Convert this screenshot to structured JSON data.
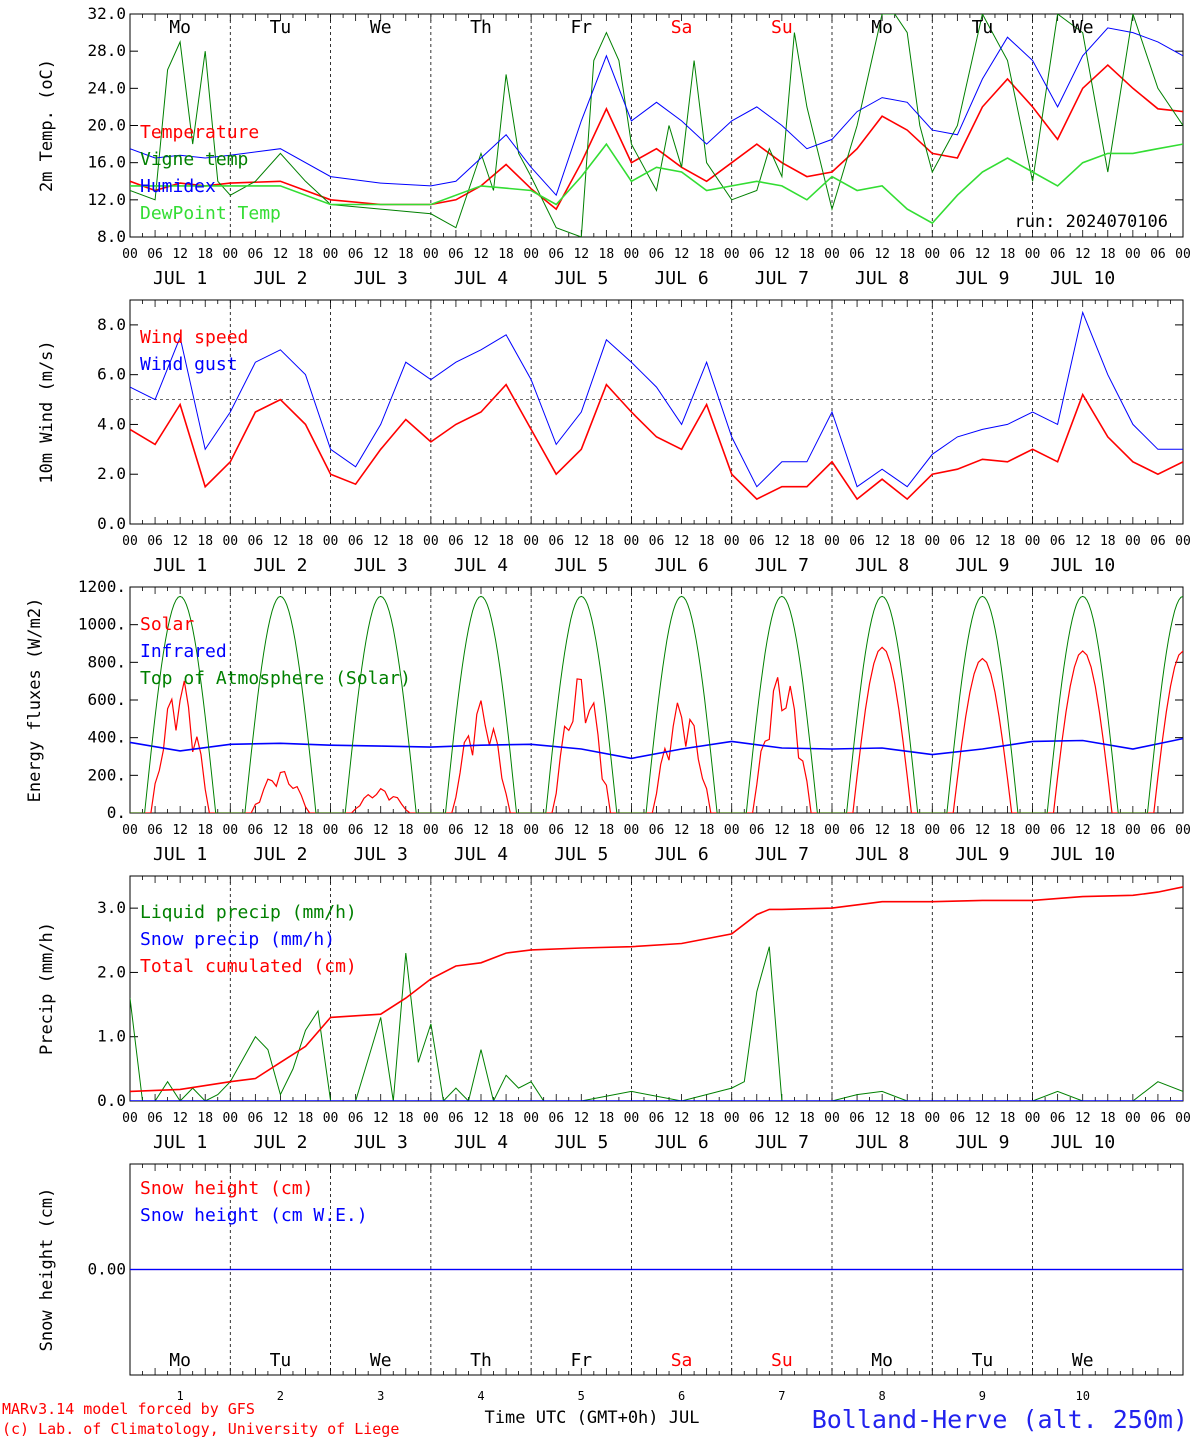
{
  "colors": {
    "red": "#ff0000",
    "blue": "#0000ff",
    "dark_green": "#008000",
    "light_green": "#33dd33",
    "purple": "#7f3fbf",
    "black": "#000000"
  },
  "footer": {
    "model_line": "MARv3.14 model forced by GFS",
    "credit_line": "(c) Lab. of Climatology, University of Liege",
    "time_axis_label": "Time UTC (GMT+0h) JUL",
    "station": "Bolland-Herve (alt. 250m)"
  },
  "days": {
    "weekday_labels": [
      "Mo",
      "Tu",
      "We",
      "Th",
      "Fr",
      "Sa",
      "Su",
      "Mo",
      "Tu",
      "We"
    ],
    "weekend_flags": [
      false,
      false,
      false,
      false,
      false,
      true,
      true,
      false,
      false,
      false
    ],
    "date_labels": [
      "JUL  1",
      "JUL  2",
      "JUL  3",
      "JUL  4",
      "JUL  5",
      "JUL  6",
      "JUL  7",
      "JUL  8",
      "JUL  9",
      "JUL 10"
    ],
    "day_numbers": [
      "1",
      "2",
      "3",
      "4",
      "5",
      "6",
      "7",
      "8",
      "9",
      "10"
    ],
    "hour_tick_labels": [
      "00",
      "06",
      "12",
      "18"
    ],
    "final_hour_label": "00"
  },
  "chart_data": [
    {
      "type": "line",
      "ylabel": "2m Temp. (oC)",
      "ylim": [
        8,
        32
      ],
      "yticks": [
        "8.0",
        "12.0",
        "16.0",
        "20.0",
        "24.0",
        "28.0",
        "32.0"
      ],
      "x_unit": "hours since JUL 1 00 UTC",
      "annotation": "run: 2024070106",
      "series": [
        {
          "name": "Temperature",
          "color": "red",
          "x": [
            0,
            6,
            12,
            18,
            24,
            36,
            48,
            60,
            72,
            78,
            84,
            90,
            96,
            102,
            108,
            114,
            120,
            126,
            132,
            138,
            144,
            150,
            156,
            162,
            168,
            174,
            180,
            186,
            192,
            198,
            204,
            210,
            216,
            222,
            228,
            234,
            240,
            246,
            252
          ],
          "y": [
            14,
            13,
            13.8,
            13.5,
            13.8,
            14,
            12,
            11.5,
            11.5,
            12,
            13.5,
            15.8,
            13.2,
            11,
            16,
            21.8,
            16,
            17.5,
            15.5,
            14,
            16,
            18,
            16,
            14.5,
            15,
            17.5,
            21,
            19.5,
            17,
            16.5,
            22,
            25,
            22,
            18.5,
            24,
            26.5,
            24,
            21.8,
            21.5
          ]
        },
        {
          "name": "Vigne temp",
          "color": "dark_green",
          "x": [
            0,
            6,
            9,
            12,
            15,
            18,
            21,
            24,
            30,
            36,
            42,
            48,
            60,
            72,
            78,
            84,
            87,
            90,
            93,
            96,
            102,
            108,
            111,
            114,
            117,
            120,
            126,
            129,
            132,
            135,
            138,
            144,
            150,
            153,
            156,
            159,
            162,
            168,
            174,
            180,
            183,
            186,
            189,
            192,
            198,
            204,
            210,
            216,
            222,
            228,
            234,
            240,
            246,
            252
          ],
          "y": [
            13,
            12,
            26,
            29,
            18,
            28,
            14,
            12.5,
            14,
            17,
            14,
            11.5,
            11,
            10.5,
            9,
            17,
            13,
            25.5,
            17,
            14.5,
            9,
            8,
            27,
            30,
            27,
            18,
            13,
            20,
            15.5,
            27,
            16,
            12,
            13,
            17.5,
            14.5,
            30,
            22,
            11,
            20,
            32,
            32,
            30,
            20,
            15,
            20,
            32,
            27,
            14,
            32,
            30,
            15,
            32,
            24,
            20
          ]
        },
        {
          "name": "Humidex",
          "color": "blue",
          "x": [
            0,
            6,
            12,
            18,
            24,
            36,
            48,
            60,
            72,
            78,
            84,
            90,
            96,
            102,
            108,
            114,
            120,
            126,
            132,
            138,
            144,
            150,
            156,
            162,
            168,
            174,
            180,
            186,
            192,
            198,
            204,
            210,
            216,
            222,
            228,
            234,
            240,
            246,
            252
          ],
          "y": [
            17.5,
            16.5,
            16.8,
            16.5,
            16.8,
            17.5,
            14.5,
            13.8,
            13.5,
            14,
            16.5,
            19,
            15.5,
            12.5,
            20.5,
            27.5,
            20.5,
            22.5,
            20.5,
            18,
            20.5,
            22,
            20,
            17.5,
            18.5,
            21.5,
            23,
            22.5,
            19.5,
            19,
            25,
            29.5,
            27,
            22,
            27.5,
            30.5,
            30,
            29,
            27.5
          ]
        },
        {
          "name": "DewPoint Temp",
          "color": "light_green",
          "x": [
            0,
            12,
            24,
            36,
            48,
            60,
            72,
            84,
            96,
            102,
            108,
            114,
            120,
            126,
            132,
            138,
            144,
            150,
            156,
            162,
            168,
            174,
            180,
            186,
            192,
            198,
            204,
            210,
            216,
            222,
            228,
            234,
            240,
            246,
            252
          ],
          "y": [
            13.5,
            13.5,
            13.5,
            13.5,
            11.5,
            11.5,
            11.5,
            13.5,
            13,
            11.5,
            14.5,
            18,
            14,
            15.5,
            15,
            13,
            13.5,
            14,
            13.5,
            12,
            14.5,
            13,
            13.5,
            11,
            9.5,
            12.5,
            15,
            16.5,
            15,
            13.5,
            16,
            17,
            17,
            17.5,
            18
          ]
        }
      ]
    },
    {
      "type": "line",
      "ylabel": "10m Wind (m/s)",
      "ylim": [
        0,
        9
      ],
      "yticks": [
        "0.0",
        "2.0",
        "4.0",
        "6.0",
        "8.0"
      ],
      "reference_line": 5,
      "series": [
        {
          "name": "Wind speed",
          "color": "red",
          "x": [
            0,
            6,
            12,
            18,
            24,
            30,
            36,
            42,
            48,
            54,
            60,
            66,
            72,
            78,
            84,
            90,
            96,
            102,
            108,
            114,
            120,
            126,
            132,
            138,
            144,
            150,
            156,
            162,
            168,
            174,
            180,
            186,
            192,
            198,
            204,
            210,
            216,
            222,
            228,
            234,
            240,
            246,
            252
          ],
          "y": [
            3.8,
            3.2,
            4.8,
            1.5,
            2.5,
            4.5,
            5,
            4,
            2,
            1.6,
            3,
            4.2,
            3.3,
            4,
            4.5,
            5.6,
            3.8,
            2,
            3,
            5.6,
            4.5,
            3.5,
            3,
            4.8,
            2,
            1,
            1.5,
            1.5,
            2.5,
            1,
            1.8,
            1,
            2,
            2.2,
            2.6,
            2.5,
            3,
            2.5,
            5.2,
            3.5,
            2.5,
            2,
            2.5
          ]
        },
        {
          "name": "Wind gust",
          "color": "blue",
          "x": [
            0,
            6,
            12,
            18,
            24,
            30,
            36,
            42,
            48,
            54,
            60,
            66,
            72,
            78,
            84,
            90,
            96,
            102,
            108,
            114,
            120,
            126,
            132,
            138,
            144,
            150,
            156,
            162,
            168,
            174,
            180,
            186,
            192,
            198,
            204,
            210,
            216,
            222,
            228,
            234,
            240,
            246,
            252
          ],
          "y": [
            5.5,
            5,
            7.5,
            3,
            4.5,
            6.5,
            7,
            6,
            3,
            2.3,
            4,
            6.5,
            5.8,
            6.5,
            7,
            7.6,
            5.8,
            3.2,
            4.5,
            7.4,
            6.5,
            5.5,
            4,
            6.5,
            3.5,
            1.5,
            2.5,
            2.5,
            4.5,
            1.5,
            2.2,
            1.5,
            2.8,
            3.5,
            3.8,
            4,
            4.5,
            4,
            8.5,
            6,
            4,
            3,
            3
          ]
        }
      ]
    },
    {
      "type": "line",
      "ylabel": "Energy fluxes (W/m2)",
      "ylim": [
        0,
        1200
      ],
      "yticks": [
        "0.",
        "200.",
        "400.",
        "600.",
        "800.",
        "1000.",
        "1200."
      ],
      "series": [
        {
          "name": "Solar",
          "color": "red",
          "day_peaks": [
            720,
            230,
            130,
            600,
            750,
            600,
            760,
            880,
            820,
            860
          ]
        },
        {
          "name": "Infrared",
          "color": "blue",
          "x": [
            0,
            12,
            24,
            36,
            48,
            60,
            72,
            84,
            96,
            108,
            120,
            132,
            144,
            156,
            168,
            180,
            192,
            204,
            216,
            228,
            240,
            252
          ],
          "y": [
            375,
            330,
            365,
            370,
            360,
            355,
            350,
            360,
            365,
            340,
            290,
            340,
            380,
            345,
            340,
            345,
            310,
            340,
            380,
            385,
            340,
            395
          ]
        },
        {
          "name": "Top of Atmosphere (Solar)",
          "color": "dark_green",
          "daily_peak": 1150,
          "sunrise_hour": 3.5,
          "sunset_hour": 20.5
        }
      ]
    },
    {
      "type": "line",
      "ylabel": "Precip (mm/h)",
      "ylim": [
        0,
        3.5
      ],
      "yticks": [
        "0.0",
        "1.0",
        "2.0",
        "3.0"
      ],
      "series": [
        {
          "name": "Liquid precip (mm/h)",
          "color": "dark_green",
          "x": [
            0,
            3,
            6,
            9,
            12,
            15,
            18,
            21,
            24,
            30,
            33,
            36,
            39,
            42,
            45,
            48,
            51,
            54,
            60,
            63,
            66,
            69,
            72,
            75,
            78,
            81,
            84,
            87,
            90,
            93,
            96,
            99,
            102,
            108,
            120,
            132,
            144,
            147,
            150,
            153,
            156,
            159,
            162,
            168,
            174,
            180,
            186,
            192,
            204,
            216,
            222,
            228,
            240,
            246,
            252
          ],
          "y": [
            1.6,
            0,
            0,
            0.3,
            0,
            0.2,
            0,
            0.1,
            0.3,
            1.0,
            0.8,
            0.1,
            0.5,
            1.1,
            1.4,
            0,
            0,
            0,
            1.3,
            0,
            2.3,
            0.6,
            1.2,
            0,
            0.2,
            0,
            0.8,
            0,
            0.4,
            0.2,
            0.3,
            0,
            0,
            0,
            0.15,
            0,
            0.2,
            0.3,
            1.7,
            2.4,
            0,
            0,
            0,
            0,
            0.1,
            0.15,
            0,
            0,
            0,
            0,
            0.15,
            0,
            0,
            0.3,
            0.15
          ]
        },
        {
          "name": "Snow precip (mm/h)",
          "color": "blue",
          "x": [
            0,
            252
          ],
          "y": [
            0,
            0
          ]
        },
        {
          "name": "Total cumulated (cm)",
          "color": "red",
          "x": [
            0,
            12,
            24,
            30,
            36,
            42,
            48,
            60,
            66,
            72,
            78,
            84,
            90,
            96,
            108,
            120,
            132,
            144,
            150,
            153,
            156,
            168,
            180,
            192,
            204,
            216,
            228,
            240,
            246,
            252
          ],
          "y": [
            0.15,
            0.18,
            0.3,
            0.35,
            0.6,
            0.85,
            1.3,
            1.35,
            1.6,
            1.9,
            2.1,
            2.15,
            2.3,
            2.35,
            2.38,
            2.4,
            2.45,
            2.6,
            2.9,
            2.98,
            2.98,
            3.0,
            3.1,
            3.1,
            3.12,
            3.12,
            3.18,
            3.2,
            3.25,
            3.33
          ]
        }
      ]
    },
    {
      "type": "line",
      "ylabel": "Snow height (cm)",
      "yticks": [
        "0.00"
      ],
      "series": [
        {
          "name": "Snow height (cm)",
          "color": "red",
          "x": [
            0,
            252
          ],
          "y": [
            0,
            0
          ]
        },
        {
          "name": "Snow height (cm W.E.)",
          "color": "blue",
          "x": [
            0,
            252
          ],
          "y": [
            0,
            0
          ]
        }
      ]
    }
  ]
}
